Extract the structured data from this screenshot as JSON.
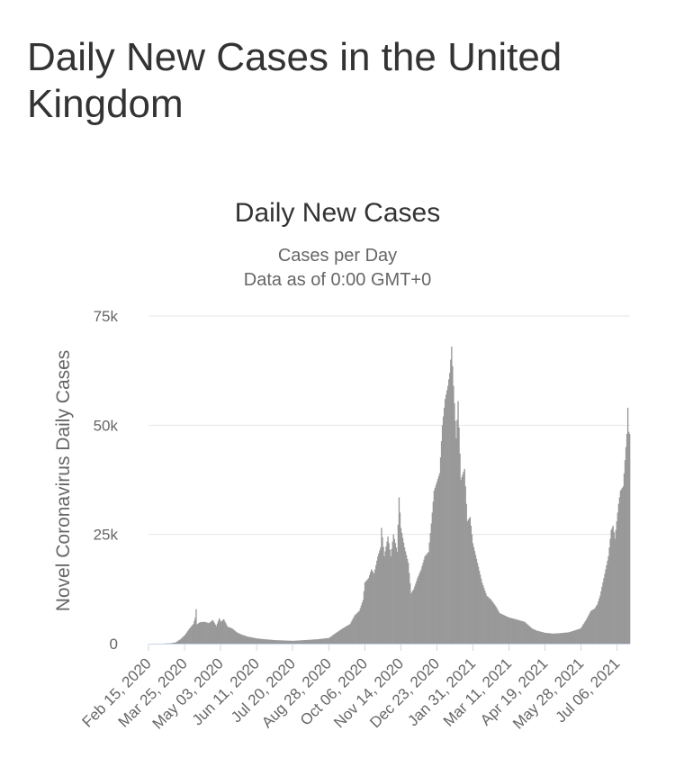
{
  "page": {
    "heading": "Daily New Cases in the United Kingdom"
  },
  "chart_data": {
    "type": "bar",
    "title": "Daily New Cases",
    "subtitle_lines": [
      "Cases per Day",
      "Data as of 0:00 GMT+0"
    ],
    "ylabel": "Novel Coronavirus Daily Cases",
    "xlabel": "",
    "ylim": [
      0,
      75000
    ],
    "y_ticks": [
      0,
      25000,
      50000,
      75000
    ],
    "y_tick_labels": [
      "0",
      "25k",
      "50k",
      "75k"
    ],
    "x_range": [
      "2020-02-15",
      "2021-07-20"
    ],
    "x_ticks": [
      "2020-02-15",
      "2020-03-25",
      "2020-05-03",
      "2020-06-11",
      "2020-07-20",
      "2020-08-28",
      "2020-10-06",
      "2020-11-14",
      "2020-12-23",
      "2021-01-31",
      "2021-03-11",
      "2021-04-19",
      "2021-05-28",
      "2021-07-06"
    ],
    "x_tick_labels": [
      "Feb 15, 2020",
      "Mar 25, 2020",
      "May 03, 2020",
      "Jun 11, 2020",
      "Jul 20, 2020",
      "Aug 28, 2020",
      "Oct 06, 2020",
      "Nov 14, 2020",
      "Dec 23, 2020",
      "Jan 31, 2021",
      "Mar 11, 2021",
      "Apr 19, 2021",
      "May 28, 2021",
      "Jul 06, 2021"
    ],
    "grid": true,
    "legend": "none",
    "bar_color": "#999999",
    "gridline_color": "#e6e6e6",
    "axis_color": "#ccd6eb",
    "series": [
      {
        "points": [
          [
            "2020-02-15",
            0
          ],
          [
            "2020-03-01",
            10
          ],
          [
            "2020-03-10",
            100
          ],
          [
            "2020-03-15",
            300
          ],
          [
            "2020-03-20",
            1000
          ],
          [
            "2020-03-25",
            2000
          ],
          [
            "2020-03-30",
            3500
          ],
          [
            "2020-04-03",
            4500
          ],
          [
            "2020-04-05",
            5900
          ],
          [
            "2020-04-06",
            7900
          ],
          [
            "2020-04-07",
            4400
          ],
          [
            "2020-04-10",
            4900
          ],
          [
            "2020-04-15",
            5000
          ],
          [
            "2020-04-20",
            4700
          ],
          [
            "2020-04-24",
            5400
          ],
          [
            "2020-04-28",
            4000
          ],
          [
            "2020-05-01",
            5800
          ],
          [
            "2020-05-03",
            5000
          ],
          [
            "2020-05-06",
            5600
          ],
          [
            "2020-05-10",
            3900
          ],
          [
            "2020-05-15",
            3500
          ],
          [
            "2020-05-20",
            2600
          ],
          [
            "2020-05-25",
            2100
          ],
          [
            "2020-06-01",
            1600
          ],
          [
            "2020-06-11",
            1200
          ],
          [
            "2020-06-20",
            1000
          ],
          [
            "2020-07-01",
            800
          ],
          [
            "2020-07-20",
            650
          ],
          [
            "2020-08-01",
            800
          ],
          [
            "2020-08-15",
            1000
          ],
          [
            "2020-08-28",
            1300
          ],
          [
            "2020-09-05",
            2500
          ],
          [
            "2020-09-12",
            3500
          ],
          [
            "2020-09-20",
            4500
          ],
          [
            "2020-09-25",
            6500
          ],
          [
            "2020-09-30",
            7500
          ],
          [
            "2020-10-04",
            10000
          ],
          [
            "2020-10-06",
            14000
          ],
          [
            "2020-10-10",
            15000
          ],
          [
            "2020-10-13",
            17000
          ],
          [
            "2020-10-16",
            16000
          ],
          [
            "2020-10-20",
            20000
          ],
          [
            "2020-10-23",
            22000
          ],
          [
            "2020-10-24",
            26500
          ],
          [
            "2020-10-27",
            20000
          ],
          [
            "2020-10-31",
            24500
          ],
          [
            "2020-11-03",
            20000
          ],
          [
            "2020-11-06",
            25000
          ],
          [
            "2020-11-10",
            21000
          ],
          [
            "2020-11-12",
            33500
          ],
          [
            "2020-11-14",
            26500
          ],
          [
            "2020-11-18",
            22000
          ],
          [
            "2020-11-22",
            18500
          ],
          [
            "2020-11-25",
            11500
          ],
          [
            "2020-11-28",
            12500
          ],
          [
            "2020-12-02",
            15000
          ],
          [
            "2020-12-06",
            17000
          ],
          [
            "2020-12-10",
            20000
          ],
          [
            "2020-12-14",
            21000
          ],
          [
            "2020-12-17",
            27500
          ],
          [
            "2020-12-20",
            35000
          ],
          [
            "2020-12-23",
            37000
          ],
          [
            "2020-12-26",
            39000
          ],
          [
            "2020-12-29",
            50000
          ],
          [
            "2021-01-01",
            56000
          ],
          [
            "2021-01-04",
            59000
          ],
          [
            "2021-01-06",
            62000
          ],
          [
            "2021-01-08",
            68000
          ],
          [
            "2021-01-10",
            59000
          ],
          [
            "2021-01-13",
            47000
          ],
          [
            "2021-01-15",
            55500
          ],
          [
            "2021-01-18",
            37500
          ],
          [
            "2021-01-22",
            40000
          ],
          [
            "2021-01-25",
            28000
          ],
          [
            "2021-01-28",
            29000
          ],
          [
            "2021-01-31",
            23000
          ],
          [
            "2021-02-05",
            18500
          ],
          [
            "2021-02-10",
            14000
          ],
          [
            "2021-02-15",
            11000
          ],
          [
            "2021-02-20",
            10000
          ],
          [
            "2021-02-25",
            8500
          ],
          [
            "2021-03-01",
            7000
          ],
          [
            "2021-03-06",
            6500
          ],
          [
            "2021-03-11",
            6000
          ],
          [
            "2021-03-20",
            5500
          ],
          [
            "2021-03-28",
            5000
          ],
          [
            "2021-04-05",
            3500
          ],
          [
            "2021-04-10",
            3000
          ],
          [
            "2021-04-19",
            2500
          ],
          [
            "2021-04-28",
            2300
          ],
          [
            "2021-05-05",
            2400
          ],
          [
            "2021-05-15",
            2600
          ],
          [
            "2021-05-21",
            3000
          ],
          [
            "2021-05-28",
            3500
          ],
          [
            "2021-06-03",
            5500
          ],
          [
            "2021-06-08",
            7500
          ],
          [
            "2021-06-12",
            8000
          ],
          [
            "2021-06-15",
            9000
          ],
          [
            "2021-06-18",
            11000
          ],
          [
            "2021-06-21",
            14000
          ],
          [
            "2021-06-24",
            17000
          ],
          [
            "2021-06-27",
            20000
          ],
          [
            "2021-06-30",
            26000
          ],
          [
            "2021-07-02",
            27000
          ],
          [
            "2021-07-04",
            24000
          ],
          [
            "2021-07-06",
            28000
          ],
          [
            "2021-07-08",
            32000
          ],
          [
            "2021-07-10",
            35000
          ],
          [
            "2021-07-13",
            36000
          ],
          [
            "2021-07-15",
            42000
          ],
          [
            "2021-07-17",
            48000
          ],
          [
            "2021-07-18",
            54000
          ],
          [
            "2021-07-19",
            48500
          ],
          [
            "2021-07-20",
            48000
          ]
        ]
      }
    ]
  }
}
